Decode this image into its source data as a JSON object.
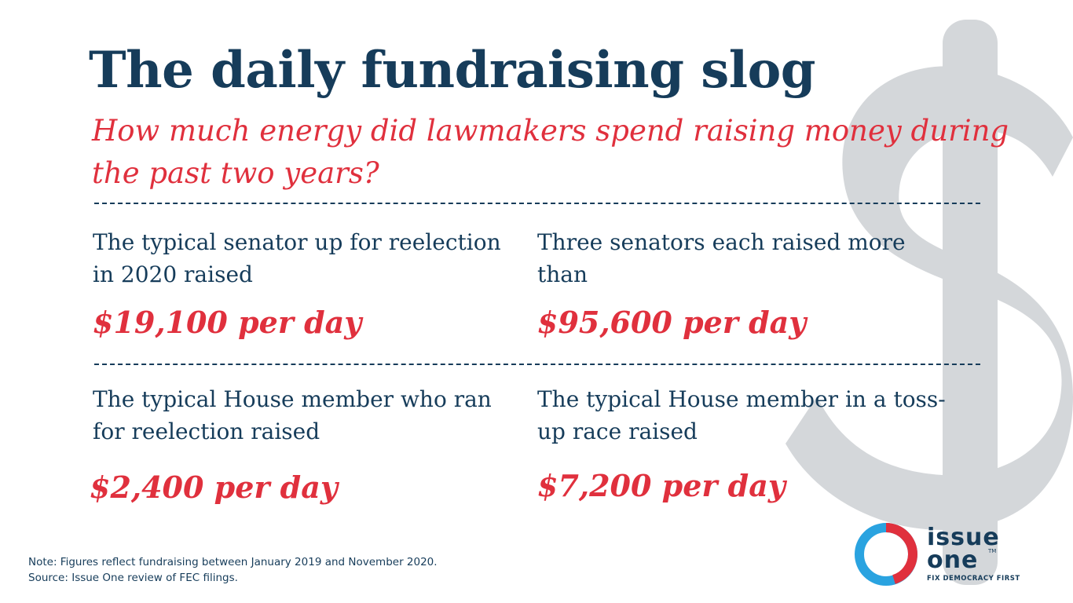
{
  "header": {
    "title": "The daily fundraising slog",
    "subtitle": "How much energy did lawmakers spend raising money during the past two years?"
  },
  "stats": [
    {
      "label": "The typical senator up for reelection in 2020 raised",
      "value": "$19,100 per day"
    },
    {
      "label": "Three senators each raised more than",
      "value": "$95,600 per day"
    },
    {
      "label": "The typical House member who ran for reelection raised",
      "value": "$2,400 per day"
    },
    {
      "label": "The typical House member in a toss-up race raised",
      "value": "$7,200 per day"
    }
  ],
  "footer": {
    "note": "Note: Figures reflect fundraising between January 2019 and November 2020.",
    "source": "Source: Issue One review of FEC filings."
  },
  "logo": {
    "word_top": "issue",
    "word_bottom": "one",
    "trademark": "TM",
    "tagline": "FIX DEMOCRACY FIRST"
  },
  "colors": {
    "navy": "#163c5a",
    "red": "#e0303d",
    "dollar_watermark": "#d4d7da",
    "logo_blue": "#2aa3e0"
  },
  "icons": {
    "background": "dollar-sign-icon",
    "logo": "issue-one-logo-icon"
  }
}
